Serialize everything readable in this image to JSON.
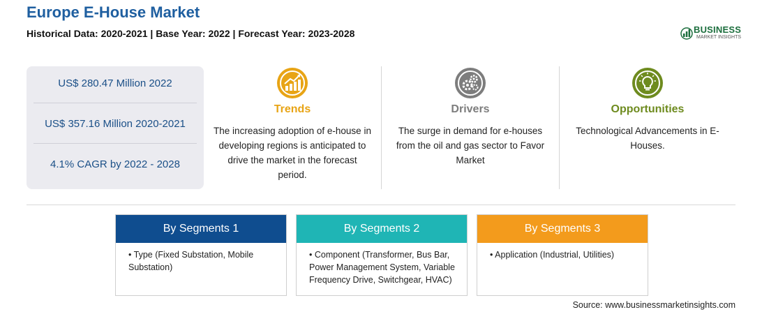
{
  "header": {
    "title": "Europe E-House Market",
    "subtitle": "Historical Data: 2020-2021 | Base Year: 2022 | Forecast Year: 2023-2028"
  },
  "logo": {
    "name": "BUSINESS",
    "tagline": "MARKET INSIGHTS"
  },
  "stats": [
    "US$ 280.47 Million 2022",
    "US$ 357.16 Million 2020-2021",
    "4.1% CAGR by 2022 - 2028"
  ],
  "columns": [
    {
      "icon": "trend-chart-icon",
      "heading": "Trends",
      "color": "#e8a415",
      "text": "The increasing adoption of e-house in developing regions is anticipated to drive the market in the forecast period."
    },
    {
      "icon": "gears-icon",
      "heading": "Drivers",
      "color": "#7d7d7d",
      "text": "The surge in demand for e-houses from the oil and gas sector to Favor Market"
    },
    {
      "icon": "lightbulb-icon",
      "heading": "Opportunities",
      "color": "#6e8b1f",
      "text": "Technological Advancements in E-Houses."
    }
  ],
  "segments": [
    {
      "heading": "By Segments 1",
      "color": "#0f4d8f",
      "body": "• Type (Fixed Substation, Mobile Substation)"
    },
    {
      "heading": "By Segments 2",
      "color": "#1fb5b5",
      "body": "• Component (Transformer, Bus Bar, Power Management System, Variable Frequency Drive, Switchgear, HVAC)"
    },
    {
      "heading": "By Segments 3",
      "color": "#f39b1c",
      "body": "• Application (Industrial, Utilities)"
    }
  ],
  "source": "Source: www.businessmarketinsights.com"
}
